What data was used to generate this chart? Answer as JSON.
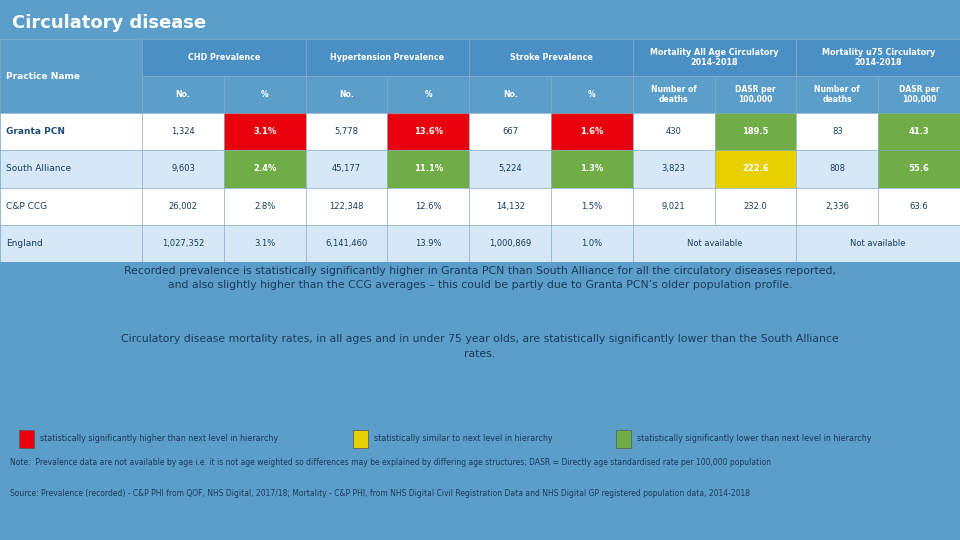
{
  "title": "Circulatory disease",
  "title_bg": "#1F6FA5",
  "title_color": "#FFFFFF",
  "header_bg": "#4A90C4",
  "subheader_bg": "#5B9EC9",
  "main_bg": "#5B9EC9",
  "row_bgs": [
    "#FFFFFF",
    "#D6E8F5",
    "#FFFFFF",
    "#D6E8F5"
  ],
  "text_dark": "#1A3A5C",
  "col_groups": [
    {
      "label": "CHD Prevalence",
      "span": 2
    },
    {
      "label": "Hypertension Prevalence",
      "span": 2
    },
    {
      "label": "Stroke Prevalence",
      "span": 2
    },
    {
      "label": "Mortality All Age Circulatory\n2014-2018",
      "span": 2
    },
    {
      "label": "Mortality u75 Circulatory\n2014-2018",
      "span": 2
    }
  ],
  "col_sub": [
    "No.",
    "%",
    "No.",
    "%",
    "No.",
    "%",
    "Number of\ndeaths",
    "DASR per\n100,000",
    "Number of\ndeaths",
    "DASR per\n100,000"
  ],
  "rows": [
    {
      "name": "Granta PCN",
      "bold": true,
      "values": [
        "1,324",
        "3.1%",
        "5,778",
        "13.6%",
        "667",
        "1.6%",
        "430",
        "189.5",
        "83",
        "41.3"
      ],
      "colors": [
        "",
        "red",
        "",
        "red",
        "",
        "red",
        "",
        "green",
        "",
        "green"
      ]
    },
    {
      "name": "South Alliance",
      "bold": false,
      "values": [
        "9,603",
        "2.4%",
        "45,177",
        "11.1%",
        "5,224",
        "1.3%",
        "3,823",
        "222.6",
        "808",
        "55.6"
      ],
      "colors": [
        "",
        "green",
        "",
        "green",
        "",
        "green",
        "",
        "yellow",
        "",
        "green"
      ]
    },
    {
      "name": "C&P CCG",
      "bold": false,
      "values": [
        "26,002",
        "2.8%",
        "122,348",
        "12.6%",
        "14,132",
        "1.5%",
        "9,021",
        "232.0",
        "2,336",
        "63.6"
      ],
      "colors": [
        "",
        "",
        "",
        "",
        "",
        "",
        "",
        "",
        "",
        ""
      ]
    },
    {
      "name": "England",
      "bold": false,
      "values": [
        "1,027,352",
        "3.1%",
        "6,141,460",
        "13.9%",
        "1,000,869",
        "1.0%",
        "",
        "",
        "",
        ""
      ],
      "colors": [
        "",
        "",
        "",
        "",
        "",
        "",
        "",
        "",
        "",
        ""
      ],
      "merged_ranges": [
        [
          6,
          7
        ],
        [
          8,
          9
        ]
      ],
      "merged_texts": [
        "Not available",
        "Not available"
      ]
    }
  ],
  "text1": "Recorded prevalence is statistically significantly higher in Granta PCN than South Alliance for all the circulatory diseases reported,\nand also slightly higher than the CCG averages – this could be partly due to Granta PCN’s older population profile.",
  "text2": "Circulatory disease mortality rates, in all ages and in under 75 year olds, are statistically significantly lower than the South Alliance\nrates.",
  "legend_colors": [
    "#E8000C",
    "#E8D000",
    "#70AD47"
  ],
  "legend_labels": [
    "statistically significantly higher than next level in hierarchy",
    "statistically similar to next level in hierarchy",
    "statistically significantly lower than next level in hierarchy"
  ],
  "note1": "Note:  Prevalence data are not available by age i.e. it is not age weighted so differences may be explained by differing age structures; DASR = Directly age standardised rate per 100,000 population",
  "note2": "Source: Prevalence (recorded) - C&P PHI from QOF, NHS Digital, 2017/18; Mortality - C&P PHI, from NHS Digital Civil Registration Data and NHS Digital GP registered population data, 2014-2018"
}
